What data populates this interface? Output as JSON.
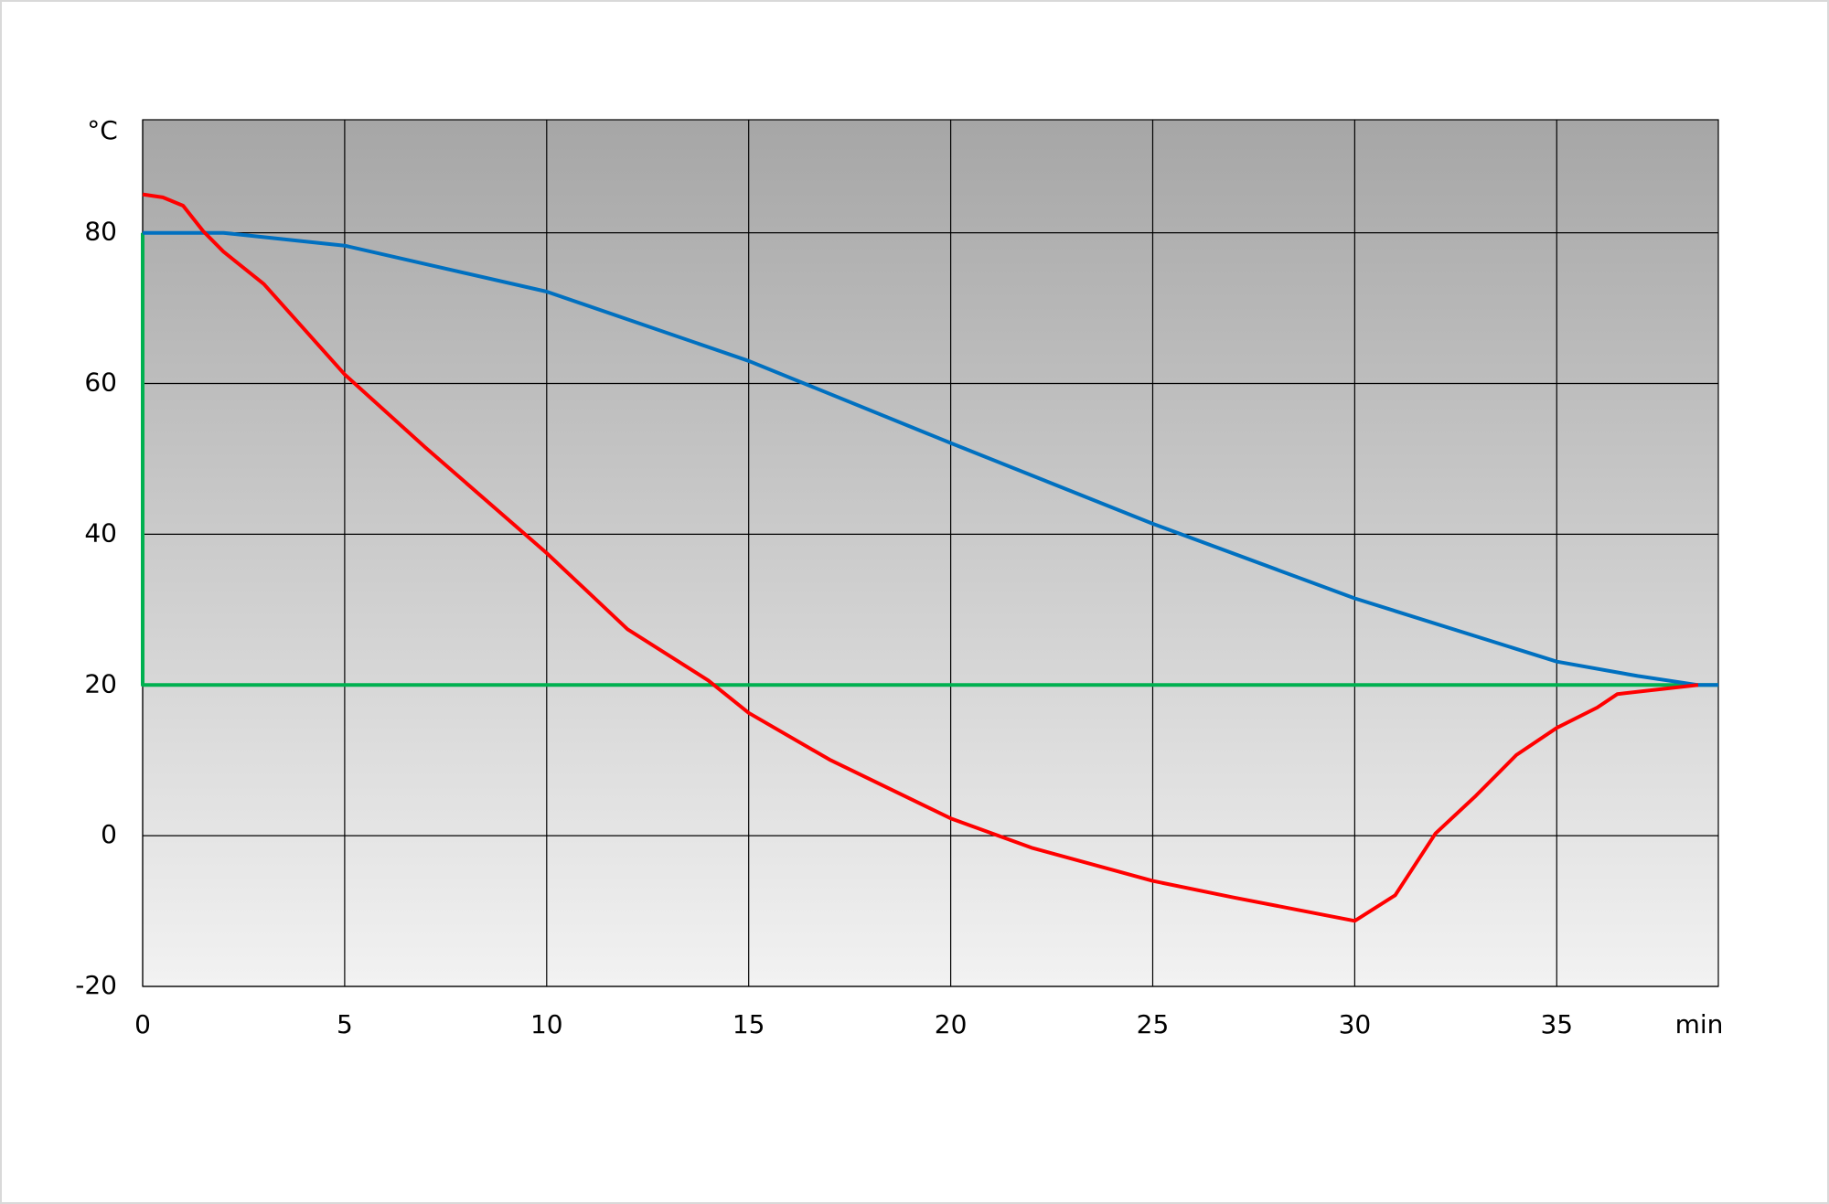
{
  "chart_data": {
    "type": "line",
    "y_unit": "°C",
    "x_unit": "min",
    "xlim": [
      0,
      39
    ],
    "xticks": [
      0,
      5,
      10,
      15,
      20,
      25,
      30,
      35
    ],
    "ylim": [
      -20,
      95
    ],
    "yticks": [
      -20,
      0,
      20,
      40,
      60,
      80
    ],
    "grid": true,
    "series": [
      {
        "color": "#ff0000",
        "x": [
          0,
          0.5,
          1,
          1.5,
          2,
          3,
          5,
          7,
          10,
          12,
          14,
          15,
          17,
          20,
          22,
          25,
          27,
          30,
          31,
          32,
          33,
          34,
          35,
          36,
          36.5,
          38.5
        ],
        "values": [
          85.1,
          84.7,
          83.6,
          80.2,
          77.5,
          73.2,
          61.2,
          51.5,
          37.5,
          27.4,
          20.6,
          16.3,
          10.1,
          2.3,
          -1.6,
          -6,
          -8.2,
          -11.3,
          -7.9,
          0.3,
          5.3,
          10.7,
          14.3,
          17,
          18.8,
          20
        ]
      },
      {
        "color": "#0070c0",
        "x": [
          0,
          2,
          5,
          10,
          15,
          20,
          25,
          30,
          35,
          37,
          38.5,
          39
        ],
        "values": [
          80,
          80,
          78.3,
          72.2,
          63,
          52.1,
          41.4,
          31.5,
          23.1,
          21.2,
          20,
          20
        ]
      },
      {
        "color": "#00b050",
        "x": [
          0,
          0,
          39
        ],
        "values": [
          80,
          20,
          20
        ]
      }
    ]
  }
}
